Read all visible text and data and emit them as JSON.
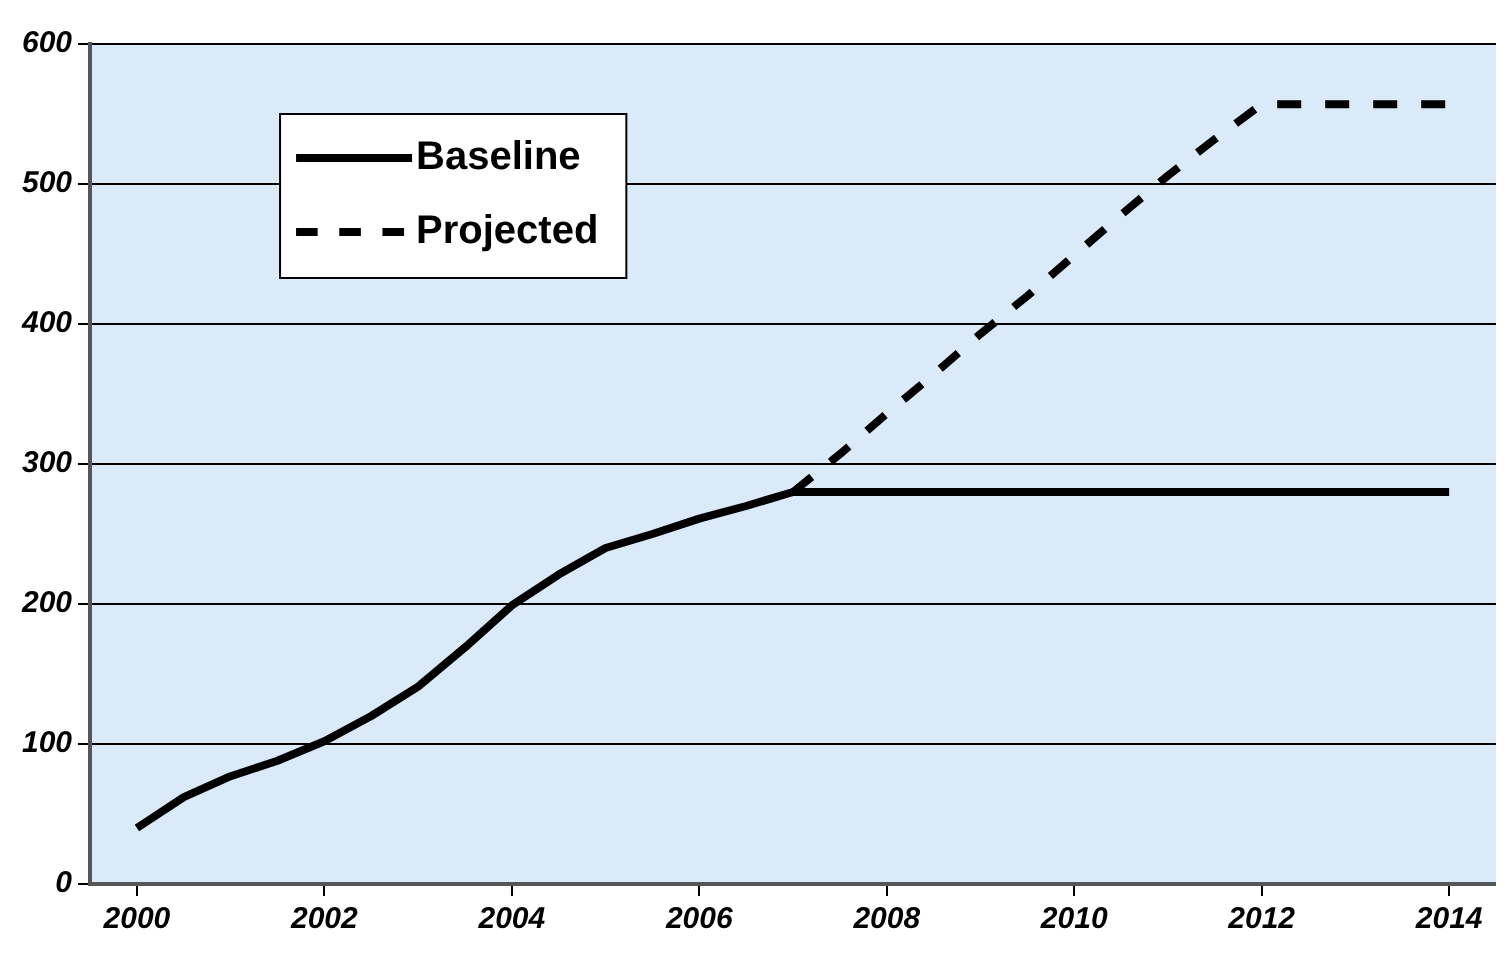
{
  "chart_data": {
    "type": "line",
    "xlim": [
      1999.5,
      2014.5
    ],
    "xticks": [
      2000,
      2002,
      2004,
      2006,
      2008,
      2010,
      2012,
      2014
    ],
    "ylim": [
      0,
      600
    ],
    "yticks": [
      0,
      100,
      200,
      300,
      400,
      500,
      600
    ],
    "grid": "y",
    "legend": "top left",
    "marker": "none",
    "series": [
      {
        "name": "Baseline",
        "color": "#000000",
        "line_style": "solid",
        "x": [
          2000,
          2000.5,
          2001,
          2001.5,
          2002,
          2002.5,
          2003,
          2003.5,
          2004,
          2004.5,
          2005,
          2005.5,
          2006,
          2006.5,
          2007,
          2014
        ],
        "values": [
          40,
          62,
          77,
          88,
          102,
          120,
          141,
          169,
          199,
          221,
          240,
          250,
          261,
          270,
          280,
          280
        ]
      },
      {
        "name": "Projected",
        "color": "#000000",
        "line_style": "dashed",
        "x": [
          2007,
          2007.5,
          2008,
          2008.5,
          2009,
          2009.5,
          2010,
          2010.5,
          2011,
          2011.5,
          2012,
          2014
        ],
        "values": [
          280,
          307,
          336,
          364,
          393,
          420,
          449,
          478,
          506,
          532,
          557,
          557
        ]
      }
    ]
  }
}
